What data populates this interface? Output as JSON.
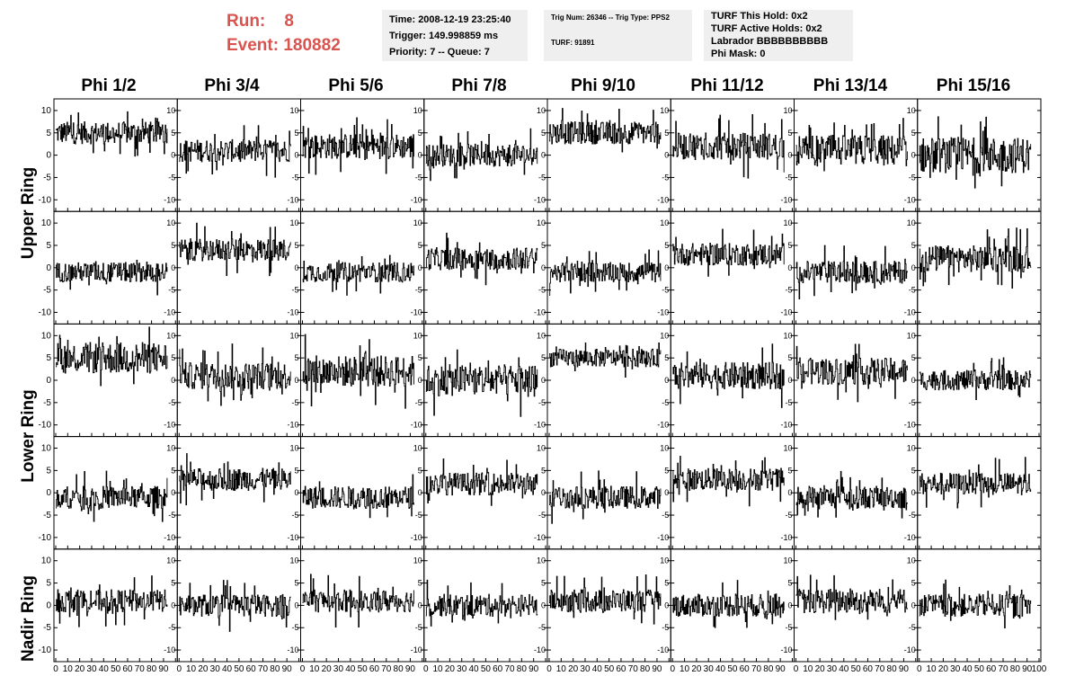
{
  "header": {
    "run_label": "Run:",
    "run_value": "8",
    "event_label": "Event:",
    "event_value": "180882",
    "time_line": "Time: 2008-12-19 23:25:40",
    "trigger_line": "Trigger: 149.998859 ms",
    "priority_line": "Priority: 7 -- Queue: 7",
    "trig_num_line": "Trig Num: 26346 -- Trig Type: PPS2",
    "turf_line": "TURF: 91891",
    "turf_this_hold": "TURF This Hold: 0x2",
    "turf_active_holds": "TURF Active Holds: 0x2",
    "labrador": "Labrador BBBBBBBBBB",
    "phi_mask": "Phi Mask: 0"
  },
  "columns": [
    "Phi 1/2",
    "Phi 3/4",
    "Phi 5/6",
    "Phi 7/8",
    "Phi 9/10",
    "Phi 11/12",
    "Phi 13/14",
    "Phi 15/16"
  ],
  "rows": [
    "Upper Ring",
    "Lower Ring",
    "Nadir Ring"
  ],
  "colors": {
    "title": "#d9534f",
    "trace": "#000000",
    "info_bg": "#efefef"
  },
  "chart_data": {
    "type": "line",
    "title": "",
    "xlabel": "",
    "ylabel": "",
    "xlim": [
      0,
      100
    ],
    "ylim": [
      -12,
      12
    ],
    "x_ticks": [
      0,
      10,
      20,
      30,
      40,
      50,
      60,
      70,
      80,
      90,
      100
    ],
    "y_ticks": [
      -10,
      -5,
      0,
      5,
      10
    ],
    "grid": false,
    "panel_rows": 5,
    "panel_cols": 8,
    "note_values": "Each panel is a trigger waveform; the per-panel baseline and spread are approximate readings from the traces.",
    "panels": [
      [
        {
          "baseline": 5,
          "spread": 2.5
        },
        {
          "baseline": 1,
          "spread": 2.5
        },
        {
          "baseline": 2,
          "spread": 2.8
        },
        {
          "baseline": 0,
          "spread": 2.5
        },
        {
          "baseline": 5,
          "spread": 2.5
        },
        {
          "baseline": 2,
          "spread": 3
        },
        {
          "baseline": 1,
          "spread": 3.5
        },
        {
          "baseline": 0,
          "spread": 4
        }
      ],
      [
        {
          "baseline": -1,
          "spread": 2.2
        },
        {
          "baseline": 4,
          "spread": 2.5
        },
        {
          "baseline": -1,
          "spread": 2.2
        },
        {
          "baseline": 2,
          "spread": 2.5
        },
        {
          "baseline": -1,
          "spread": 2.2
        },
        {
          "baseline": 3,
          "spread": 2.5
        },
        {
          "baseline": -1,
          "spread": 2.5
        },
        {
          "baseline": 2,
          "spread": 3
        }
      ],
      [
        {
          "baseline": 5,
          "spread": 3.5
        },
        {
          "baseline": 1,
          "spread": 3
        },
        {
          "baseline": 2,
          "spread": 3.5
        },
        {
          "baseline": 0,
          "spread": 3.5
        },
        {
          "baseline": 5,
          "spread": 2
        },
        {
          "baseline": 1,
          "spread": 3
        },
        {
          "baseline": 2,
          "spread": 3
        },
        {
          "baseline": 0,
          "spread": 2.2
        }
      ],
      [
        {
          "baseline": -1,
          "spread": 2.5
        },
        {
          "baseline": 3,
          "spread": 2.5
        },
        {
          "baseline": -1,
          "spread": 2.5
        },
        {
          "baseline": 2,
          "spread": 2.5
        },
        {
          "baseline": -1,
          "spread": 2.5
        },
        {
          "baseline": 3,
          "spread": 2.5
        },
        {
          "baseline": -1,
          "spread": 2.5
        },
        {
          "baseline": 2,
          "spread": 2.5
        }
      ],
      [
        {
          "baseline": 1,
          "spread": 2.5
        },
        {
          "baseline": 0,
          "spread": 2.5
        },
        {
          "baseline": 1,
          "spread": 2.5
        },
        {
          "baseline": 0,
          "spread": 2.5
        },
        {
          "baseline": 1,
          "spread": 2.5
        },
        {
          "baseline": 0,
          "spread": 2.5
        },
        {
          "baseline": 1,
          "spread": 2.8
        },
        {
          "baseline": 0,
          "spread": 2.5
        }
      ]
    ]
  }
}
